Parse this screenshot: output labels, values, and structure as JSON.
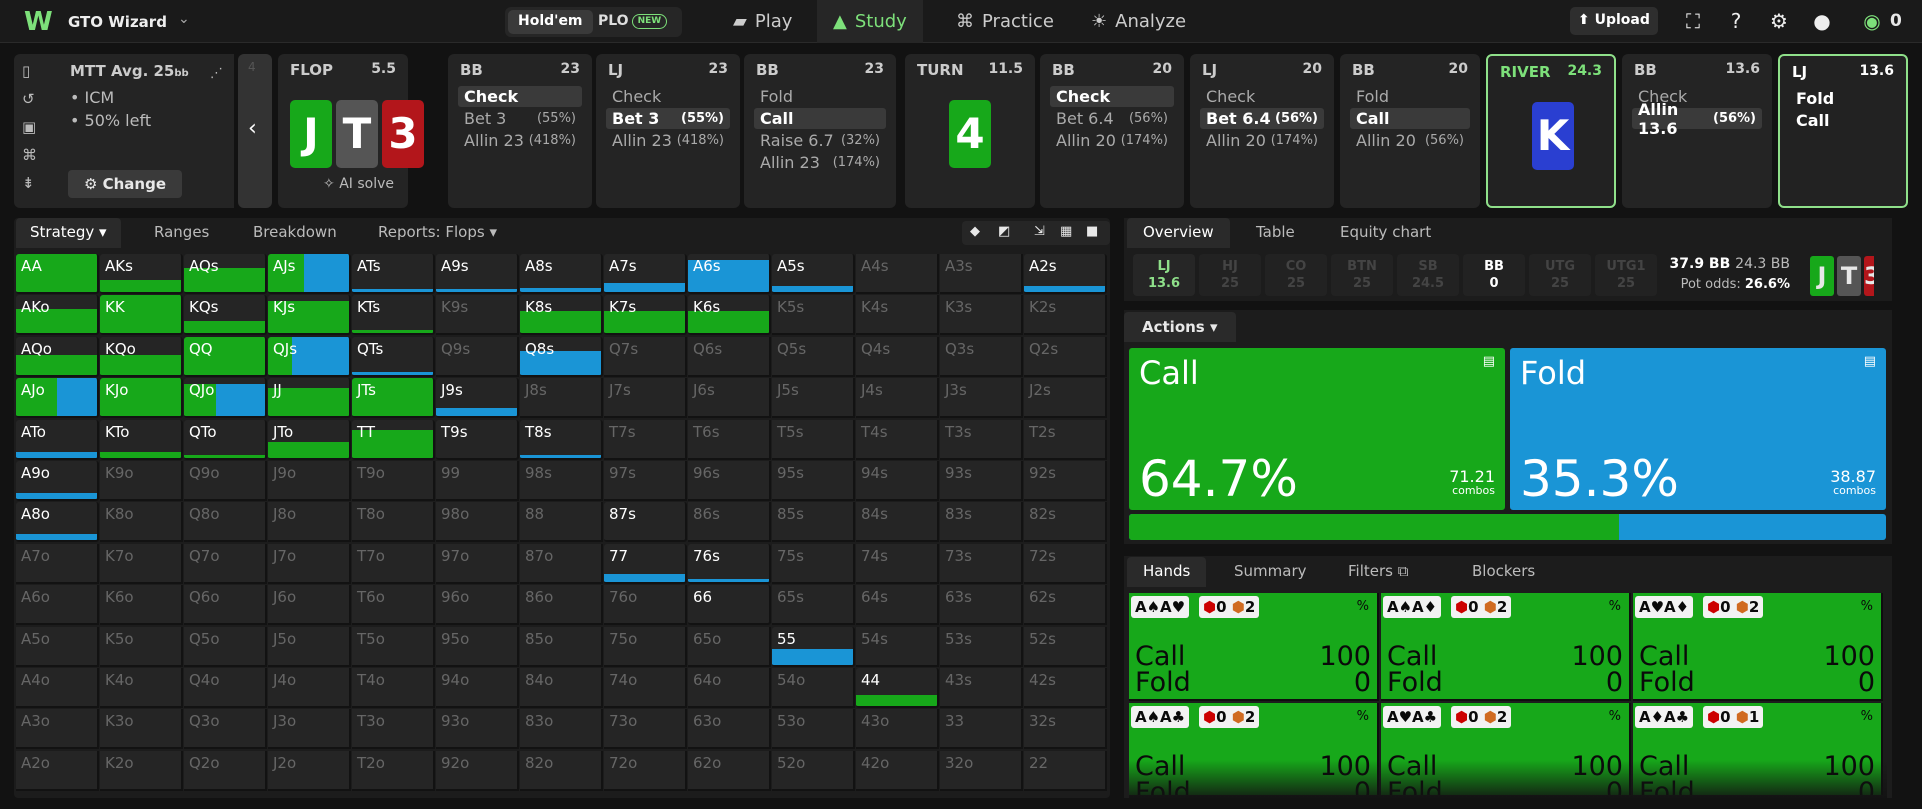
{
  "app": {
    "name": "GTO Wizard"
  },
  "game_toggle": {
    "holdem": "Hold'em",
    "plo": "PLO",
    "plo_badge": "NEW"
  },
  "nav": [
    "Play",
    "Study",
    "Practice",
    "Analyze"
  ],
  "header_right": {
    "upload": "Upload",
    "points": "0"
  },
  "mtt": {
    "title": "MTT",
    "avg": "Avg. 25",
    "avg_unit": "bb",
    "icm": "ICM",
    "left": "50% left",
    "change": "Change",
    "ai_solve": "AI solve"
  },
  "history": [
    {
      "pos": "FLOP",
      "val": "5.5",
      "cards": [
        "J",
        "T",
        "3"
      ]
    },
    {
      "pos": "BB",
      "val": "23",
      "actions": [
        {
          "a": "Check",
          "p": "",
          "sel": true
        },
        {
          "a": "Bet 3",
          "p": "(55%)"
        },
        {
          "a": "Allin 23",
          "p": "(418%)"
        }
      ]
    },
    {
      "pos": "LJ",
      "val": "23",
      "actions": [
        {
          "a": "Check",
          "p": ""
        },
        {
          "a": "Bet 3",
          "p": "(55%)",
          "sel": true
        },
        {
          "a": "Allin 23",
          "p": "(418%)"
        }
      ]
    },
    {
      "pos": "BB",
      "val": "23",
      "actions": [
        {
          "a": "Fold",
          "p": ""
        },
        {
          "a": "Call",
          "p": "",
          "sel": true
        },
        {
          "a": "Raise 6.7",
          "p": "(32%)"
        },
        {
          "a": "Allin 23",
          "p": "(174%)"
        }
      ]
    },
    {
      "pos": "TURN",
      "val": "11.5",
      "cards": [
        "4"
      ]
    },
    {
      "pos": "BB",
      "val": "20",
      "actions": [
        {
          "a": "Check",
          "p": "",
          "sel": true
        },
        {
          "a": "Bet 6.4",
          "p": "(56%)"
        },
        {
          "a": "Allin 20",
          "p": "(174%)"
        }
      ]
    },
    {
      "pos": "LJ",
      "val": "20",
      "actions": [
        {
          "a": "Check",
          "p": ""
        },
        {
          "a": "Bet 6.4",
          "p": "(56%)",
          "sel": true
        },
        {
          "a": "Allin 20",
          "p": "(174%)"
        }
      ]
    },
    {
      "pos": "BB",
      "val": "20",
      "actions": [
        {
          "a": "Fold",
          "p": ""
        },
        {
          "a": "Call",
          "p": "",
          "sel": true
        },
        {
          "a": "Allin 20",
          "p": "(56%)"
        }
      ]
    },
    {
      "pos": "RIVER",
      "val": "24.3",
      "cards": [
        "K"
      ]
    },
    {
      "pos": "BB",
      "val": "13.6",
      "actions": [
        {
          "a": "Check",
          "p": ""
        },
        {
          "a": "Allin 13.6",
          "p": "(56%)",
          "sel": true
        }
      ]
    },
    {
      "pos": "LJ",
      "val": "13.6",
      "actions": [
        {
          "a": "Fold",
          "p": ""
        },
        {
          "a": "Call",
          "p": ""
        }
      ]
    }
  ],
  "left_tabs": [
    "Strategy",
    "Ranges",
    "Breakdown",
    "Reports: Flops"
  ],
  "right_tabs": [
    "Overview",
    "Table",
    "Equity chart"
  ],
  "positions": [
    {
      "p": "LJ",
      "v": "13.6",
      "on": true
    },
    {
      "p": "HJ",
      "v": "25"
    },
    {
      "p": "CO",
      "v": "25"
    },
    {
      "p": "BTN",
      "v": "25"
    },
    {
      "p": "SB",
      "v": "24.5"
    },
    {
      "p": "BB",
      "v": "0",
      "w": true
    },
    {
      "p": "UTG",
      "v": "25"
    },
    {
      "p": "UTG1",
      "v": "25"
    }
  ],
  "pot": {
    "a": "37.9 BB",
    "b": "24.3 BB",
    "odds_label": "Pot odds:",
    "odds": "26.6%"
  },
  "actions_label": "Actions",
  "call": {
    "name": "Call",
    "pct": "64.7%",
    "combos": "71.21",
    "combos_label": "combos"
  },
  "fold": {
    "name": "Fold",
    "pct": "35.3%",
    "combos": "38.87",
    "combos_label": "combos"
  },
  "call_fraction": 0.647,
  "lower_tabs": [
    "Hands",
    "Summary",
    "Filters",
    "Blockers"
  ],
  "hand_cards": [
    {
      "h": "A♠A♥",
      "b1": "0",
      "b2": "2",
      "call": "100",
      "fold": "0"
    },
    {
      "h": "A♠A♦",
      "b1": "0",
      "b2": "2",
      "call": "100",
      "fold": "0"
    },
    {
      "h": "A♥A♦",
      "b1": "0",
      "b2": "2",
      "call": "100",
      "fold": "0"
    },
    {
      "h": "A♠A♣",
      "b1": "0",
      "b2": "2",
      "call": "100",
      "fold": "0"
    },
    {
      "h": "A♥A♣",
      "b1": "0",
      "b2": "2",
      "call": "100",
      "fold": "0"
    },
    {
      "h": "A♦A♣",
      "b1": "0",
      "b2": "1",
      "call": "100",
      "fold": "0"
    }
  ],
  "colors": {
    "call": "#17a81a",
    "fold": "#1a95d6",
    "accent": "#7de07a"
  },
  "matrix": [
    [
      "AA",
      "AKs",
      "AQs",
      "AJs",
      "ATs",
      "A9s",
      "A8s",
      "A7s",
      "A6s",
      "A5s",
      "A4s",
      "A3s",
      "A2s"
    ],
    [
      "AKo",
      "KK",
      "KQs",
      "KJs",
      "KTs",
      "K9s",
      "K8s",
      "K7s",
      "K6s",
      "K5s",
      "K4s",
      "K3s",
      "K2s"
    ],
    [
      "AQo",
      "KQo",
      "QQ",
      "QJs",
      "QTs",
      "Q9s",
      "Q8s",
      "Q7s",
      "Q6s",
      "Q5s",
      "Q4s",
      "Q3s",
      "Q2s"
    ],
    [
      "AJo",
      "KJo",
      "QJo",
      "JJ",
      "JTs",
      "J9s",
      "J8s",
      "J7s",
      "J6s",
      "J5s",
      "J4s",
      "J3s",
      "J2s"
    ],
    [
      "ATo",
      "KTo",
      "QTo",
      "JTo",
      "TT",
      "T9s",
      "T8s",
      "T7s",
      "T6s",
      "T5s",
      "T4s",
      "T3s",
      "T2s"
    ],
    [
      "A9o",
      "K9o",
      "Q9o",
      "J9o",
      "T9o",
      "99",
      "98s",
      "97s",
      "96s",
      "95s",
      "94s",
      "93s",
      "92s"
    ],
    [
      "A8o",
      "K8o",
      "Q8o",
      "J8o",
      "T8o",
      "98o",
      "88",
      "87s",
      "86s",
      "85s",
      "84s",
      "83s",
      "82s"
    ],
    [
      "A7o",
      "K7o",
      "Q7o",
      "J7o",
      "T7o",
      "97o",
      "87o",
      "77",
      "76s",
      "75s",
      "74s",
      "73s",
      "72s"
    ],
    [
      "A6o",
      "K6o",
      "Q6o",
      "J6o",
      "T6o",
      "96o",
      "86o",
      "76o",
      "66",
      "65s",
      "64s",
      "63s",
      "62s"
    ],
    [
      "A5o",
      "K5o",
      "Q5o",
      "J5o",
      "T5o",
      "95o",
      "85o",
      "75o",
      "65o",
      "55",
      "54s",
      "53s",
      "52s"
    ],
    [
      "A4o",
      "K4o",
      "Q4o",
      "J4o",
      "T4o",
      "94o",
      "84o",
      "74o",
      "64o",
      "54o",
      "44",
      "43s",
      "42s"
    ],
    [
      "A3o",
      "K3o",
      "Q3o",
      "J3o",
      "T3o",
      "93o",
      "83o",
      "73o",
      "63o",
      "53o",
      "43o",
      "33",
      "32s"
    ],
    [
      "A2o",
      "K2o",
      "Q2o",
      "J2o",
      "T2o",
      "92o",
      "82o",
      "72o",
      "62o",
      "52o",
      "42o",
      "32o",
      "22"
    ]
  ],
  "matrix_strategy": {
    "AA": [
      1,
      0,
      1
    ],
    "AKs": [
      1,
      0,
      0.3
    ],
    "AQs": [
      1,
      0,
      0.6
    ],
    "AJs": [
      0.45,
      0.55,
      1
    ],
    "ATs": [
      0,
      1,
      0.06
    ],
    "A9s": [
      0,
      1,
      0.04
    ],
    "A8s": [
      0,
      1,
      0.1
    ],
    "A7s": [
      0,
      1,
      0.22
    ],
    "A6s": [
      0,
      1,
      0.8
    ],
    "A5s": [
      0,
      1,
      0.16
    ],
    "A2s": [
      0,
      1,
      0.16
    ],
    "AKo": [
      1,
      0,
      0.6
    ],
    "KK": [
      1,
      0,
      1
    ],
    "KQs": [
      1,
      0,
      0.3
    ],
    "KJs": [
      1,
      0,
      0.8
    ],
    "KTs": [
      1,
      0,
      0.03
    ],
    "K8s": [
      1,
      0,
      0.55
    ],
    "K7s": [
      1,
      0,
      0.55
    ],
    "K6s": [
      1,
      0,
      0.55
    ],
    "AQo": [
      1,
      0,
      0.5
    ],
    "KQo": [
      1,
      0,
      0.5
    ],
    "QQ": [
      1,
      0,
      1
    ],
    "QJs": [
      0.3,
      0.7,
      1
    ],
    "QTs": [
      0,
      1,
      0.02
    ],
    "Q8s": [
      0,
      1,
      0.6
    ],
    "AJo": [
      0.5,
      0.5,
      1
    ],
    "KJo": [
      1,
      0,
      1
    ],
    "QJo": [
      0.4,
      0.6,
      0.8
    ],
    "JJ": [
      1,
      0,
      0.7
    ],
    "JTs": [
      1,
      0,
      1
    ],
    "J9s": [
      0,
      1,
      0.2
    ],
    "ATo": [
      0,
      1,
      0.14
    ],
    "KTo": [
      1,
      0,
      0.14
    ],
    "QTo": [
      1,
      0,
      0.03
    ],
    "JTo": [
      1,
      0,
      0.4
    ],
    "TT": [
      1,
      0,
      0.7
    ],
    "T9s": [
      0,
      1,
      0
    ],
    "T8s": [
      0,
      1,
      0.04
    ],
    "A9o": [
      0,
      1,
      0.16
    ],
    "A8o": [
      0,
      1,
      0.16
    ],
    "87s": [
      0,
      1,
      0
    ],
    "77": [
      0,
      1,
      0.2
    ],
    "76s": [
      0,
      1,
      0.06
    ],
    "66": [
      0,
      1,
      0
    ],
    "55": [
      0,
      1,
      0.4
    ],
    "44": [
      1,
      0,
      0.28
    ]
  }
}
